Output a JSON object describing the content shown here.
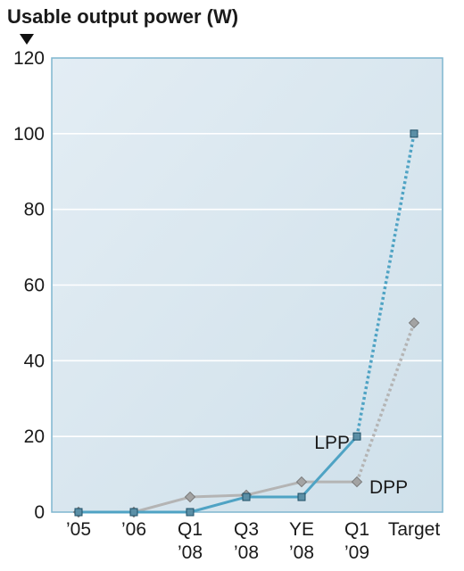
{
  "chart_data": {
    "type": "line",
    "ylabel": "Usable output power (W)",
    "ylim": [
      0,
      120
    ],
    "yticks": [
      0,
      20,
      40,
      60,
      80,
      100,
      120
    ],
    "categories": [
      [
        "’05"
      ],
      [
        "’06"
      ],
      [
        "Q1",
        "’08"
      ],
      [
        "Q3",
        "’08"
      ],
      [
        "YE",
        "’08"
      ],
      [
        "Q1",
        "’09"
      ],
      [
        "Target"
      ]
    ],
    "grid": true,
    "series": [
      {
        "name": "LPP",
        "values": [
          0,
          0,
          0,
          4,
          4,
          20,
          100
        ],
        "color": "#4fa3c4",
        "marker": "square",
        "projected_last_segment": true
      },
      {
        "name": "DPP",
        "values": [
          0,
          0,
          4,
          4.5,
          8,
          8,
          50
        ],
        "color": "#b4b4b4",
        "marker": "diamond",
        "projected_last_segment": true
      }
    ],
    "colors": {
      "plot_background": "#dde9f1",
      "plot_border": "#7fb6cf",
      "grid": "#ffffff"
    }
  }
}
